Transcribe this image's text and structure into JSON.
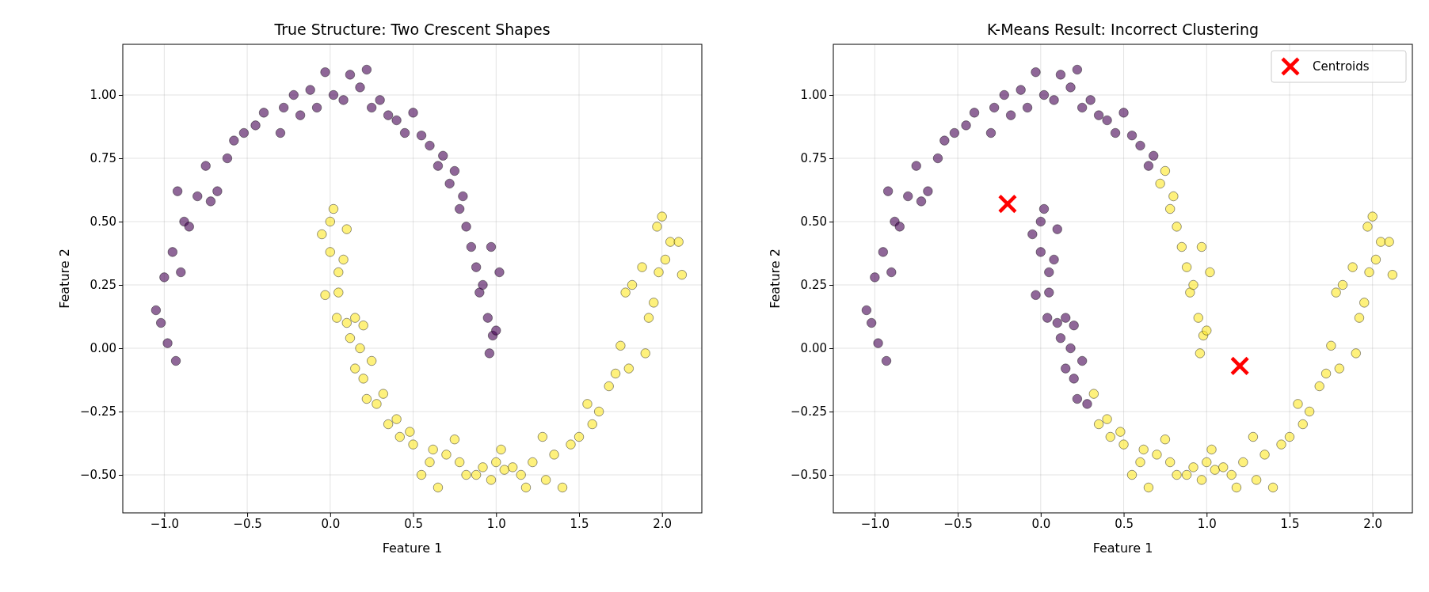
{
  "chart_data": [
    {
      "type": "scatter",
      "title": "True Structure: Two Crescent Shapes",
      "xlabel": "Feature 1",
      "ylabel": "Feature 2",
      "xlim": [
        -1.25,
        2.24
      ],
      "ylim": [
        -0.65,
        1.2
      ],
      "xticks": [
        {
          "value": -1,
          "label": "−1.0"
        },
        {
          "value": -0.5,
          "label": "−0.5"
        },
        {
          "value": 0,
          "label": "0.0"
        },
        {
          "value": 0.5,
          "label": "0.5"
        },
        {
          "value": 1,
          "label": "1.0"
        },
        {
          "value": 1.5,
          "label": "1.5"
        },
        {
          "value": 2,
          "label": "2.0"
        }
      ],
      "yticks": [
        {
          "value": -0.5,
          "label": "−0.50"
        },
        {
          "value": -0.25,
          "label": "−0.25"
        },
        {
          "value": 0,
          "label": "0.00"
        },
        {
          "value": 0.25,
          "label": "0.25"
        },
        {
          "value": 0.5,
          "label": "0.50"
        },
        {
          "value": 0.75,
          "label": "0.75"
        },
        {
          "value": 1,
          "label": "1.00"
        }
      ],
      "grid": true,
      "legend": false,
      "marker": "circle",
      "series": [
        {
          "color": "#440154",
          "x": [
            -1.05,
            -1.02,
            -0.98,
            -0.93,
            -1.0,
            -0.95,
            -0.92,
            -0.88,
            -0.9,
            -0.85,
            -0.8,
            -0.75,
            -0.72,
            -0.68,
            -0.62,
            -0.58,
            -0.52,
            -0.45,
            -0.4,
            -0.3,
            -0.28,
            -0.22,
            -0.18,
            -0.12,
            -0.08,
            -0.03,
            0.02,
            0.08,
            0.12,
            0.18,
            0.22,
            0.25,
            0.3,
            0.35,
            0.4,
            0.45,
            0.5,
            0.55,
            0.6,
            0.65,
            0.68,
            0.72,
            0.75,
            0.78,
            0.8,
            0.82,
            0.85,
            0.88,
            0.9,
            0.92,
            0.95,
            0.97,
            0.98,
            1.0,
            1.02,
            0.96
          ],
          "values": [
            0.15,
            0.1,
            0.02,
            -0.05,
            0.28,
            0.38,
            0.62,
            0.5,
            0.3,
            0.48,
            0.6,
            0.72,
            0.58,
            0.62,
            0.75,
            0.82,
            0.85,
            0.88,
            0.93,
            0.85,
            0.95,
            1.0,
            0.92,
            1.02,
            0.95,
            1.09,
            1.0,
            0.98,
            1.08,
            1.03,
            1.1,
            0.95,
            0.98,
            0.92,
            0.9,
            0.85,
            0.93,
            0.84,
            0.8,
            0.72,
            0.76,
            0.65,
            0.7,
            0.55,
            0.6,
            0.48,
            0.4,
            0.32,
            0.22,
            0.25,
            0.12,
            0.4,
            0.05,
            0.07,
            0.3,
            -0.02
          ]
        },
        {
          "color": "#fde725",
          "x": [
            0.0,
            0.02,
            -0.05,
            0.0,
            0.05,
            -0.03,
            0.05,
            0.1,
            0.08,
            0.04,
            0.1,
            0.15,
            0.12,
            0.18,
            0.2,
            0.15,
            0.2,
            0.25,
            0.22,
            0.28,
            0.32,
            0.35,
            0.4,
            0.42,
            0.48,
            0.5,
            0.55,
            0.6,
            0.62,
            0.65,
            0.7,
            0.75,
            0.78,
            0.82,
            0.88,
            0.92,
            0.97,
            1.0,
            1.03,
            1.05,
            1.1,
            1.15,
            1.18,
            1.22,
            1.28,
            1.3,
            1.35,
            1.4,
            1.45,
            1.5,
            1.55,
            1.58,
            1.62,
            1.68,
            1.72,
            1.75,
            1.8,
            1.78,
            1.82,
            1.88,
            1.92,
            1.95,
            1.97,
            2.0,
            2.02,
            2.05,
            2.1,
            2.12,
            1.98,
            1.9
          ],
          "values": [
            0.5,
            0.55,
            0.45,
            0.38,
            0.3,
            0.21,
            0.22,
            0.47,
            0.35,
            0.12,
            0.1,
            0.12,
            0.04,
            0.0,
            0.09,
            -0.08,
            -0.12,
            -0.05,
            -0.2,
            -0.22,
            -0.18,
            -0.3,
            -0.28,
            -0.35,
            -0.33,
            -0.38,
            -0.5,
            -0.45,
            -0.4,
            -0.55,
            -0.42,
            -0.36,
            -0.45,
            -0.5,
            -0.5,
            -0.47,
            -0.52,
            -0.45,
            -0.4,
            -0.48,
            -0.47,
            -0.5,
            -0.55,
            -0.45,
            -0.35,
            -0.52,
            -0.42,
            -0.55,
            -0.38,
            -0.35,
            -0.22,
            -0.3,
            -0.25,
            -0.15,
            -0.1,
            0.01,
            -0.08,
            0.22,
            0.25,
            0.32,
            0.12,
            0.18,
            0.48,
            0.52,
            0.35,
            0.42,
            0.42,
            0.29,
            0.3,
            -0.02
          ]
        }
      ]
    },
    {
      "type": "scatter",
      "title": "K-Means Result: Incorrect Clustering",
      "xlabel": "Feature 1",
      "ylabel": "Feature 2",
      "xlim": [
        -1.25,
        2.24
      ],
      "ylim": [
        -0.65,
        1.2
      ],
      "xticks": [
        {
          "value": -1,
          "label": "−1.0"
        },
        {
          "value": -0.5,
          "label": "−0.5"
        },
        {
          "value": 0,
          "label": "0.0"
        },
        {
          "value": 0.5,
          "label": "0.5"
        },
        {
          "value": 1,
          "label": "1.0"
        },
        {
          "value": 1.5,
          "label": "1.5"
        },
        {
          "value": 2,
          "label": "2.0"
        }
      ],
      "yticks": [
        {
          "value": -0.5,
          "label": "−0.50"
        },
        {
          "value": -0.25,
          "label": "−0.25"
        },
        {
          "value": 0,
          "label": "0.00"
        },
        {
          "value": 0.25,
          "label": "0.25"
        },
        {
          "value": 0.5,
          "label": "0.50"
        },
        {
          "value": 0.75,
          "label": "0.75"
        },
        {
          "value": 1,
          "label": "1.00"
        }
      ],
      "grid": true,
      "legend": "top right",
      "marker": "circle",
      "series": [
        {
          "color": "#440154",
          "x": [
            -1.05,
            -1.02,
            -0.98,
            -0.93,
            -1.0,
            -0.95,
            -0.92,
            -0.88,
            -0.9,
            -0.85,
            -0.8,
            -0.75,
            -0.72,
            -0.68,
            -0.62,
            -0.58,
            -0.52,
            -0.45,
            -0.4,
            -0.3,
            -0.28,
            -0.22,
            -0.18,
            -0.12,
            -0.08,
            -0.03,
            0.02,
            0.08,
            0.12,
            0.18,
            0.22,
            0.25,
            0.3,
            0.35,
            0.4,
            0.45,
            0.5,
            0.55,
            0.6,
            0.65,
            0.68,
            0.0,
            0.02,
            -0.05,
            0.0,
            0.05,
            -0.03,
            0.05,
            0.1,
            0.08,
            0.04,
            0.1,
            0.15,
            0.12,
            0.18,
            0.2,
            0.15,
            0.2,
            0.25,
            0.22,
            0.28
          ],
          "values": [
            0.15,
            0.1,
            0.02,
            -0.05,
            0.28,
            0.38,
            0.62,
            0.5,
            0.3,
            0.48,
            0.6,
            0.72,
            0.58,
            0.62,
            0.75,
            0.82,
            0.85,
            0.88,
            0.93,
            0.85,
            0.95,
            1.0,
            0.92,
            1.02,
            0.95,
            1.09,
            1.0,
            0.98,
            1.08,
            1.03,
            1.1,
            0.95,
            0.98,
            0.92,
            0.9,
            0.85,
            0.93,
            0.84,
            0.8,
            0.72,
            0.76,
            0.5,
            0.55,
            0.45,
            0.38,
            0.3,
            0.21,
            0.22,
            0.47,
            0.35,
            0.12,
            0.1,
            0.12,
            0.04,
            0.0,
            0.09,
            -0.08,
            -0.12,
            -0.05,
            -0.2,
            -0.22
          ]
        },
        {
          "color": "#fde725",
          "x": [
            0.72,
            0.75,
            0.78,
            0.8,
            0.82,
            0.85,
            0.88,
            0.9,
            0.92,
            0.95,
            0.97,
            0.98,
            1.0,
            1.02,
            0.96,
            0.32,
            0.35,
            0.4,
            0.42,
            0.48,
            0.5,
            0.55,
            0.6,
            0.62,
            0.65,
            0.7,
            0.75,
            0.78,
            0.82,
            0.88,
            0.92,
            0.97,
            1.0,
            1.03,
            1.05,
            1.1,
            1.15,
            1.18,
            1.22,
            1.28,
            1.3,
            1.35,
            1.4,
            1.45,
            1.5,
            1.55,
            1.58,
            1.62,
            1.68,
            1.72,
            1.75,
            1.8,
            1.78,
            1.82,
            1.88,
            1.92,
            1.95,
            1.97,
            2.0,
            2.02,
            2.05,
            2.1,
            2.12,
            1.98,
            1.9
          ],
          "values": [
            0.65,
            0.7,
            0.55,
            0.6,
            0.48,
            0.4,
            0.32,
            0.22,
            0.25,
            0.12,
            0.4,
            0.05,
            0.07,
            0.3,
            -0.02,
            -0.18,
            -0.3,
            -0.28,
            -0.35,
            -0.33,
            -0.38,
            -0.5,
            -0.45,
            -0.4,
            -0.55,
            -0.42,
            -0.36,
            -0.45,
            -0.5,
            -0.5,
            -0.47,
            -0.52,
            -0.45,
            -0.4,
            -0.48,
            -0.47,
            -0.5,
            -0.55,
            -0.45,
            -0.35,
            -0.52,
            -0.42,
            -0.55,
            -0.38,
            -0.35,
            -0.22,
            -0.3,
            -0.25,
            -0.15,
            -0.1,
            0.01,
            -0.08,
            0.22,
            0.25,
            0.32,
            0.12,
            0.18,
            0.48,
            0.52,
            0.35,
            0.42,
            0.42,
            0.29,
            0.3,
            -0.02
          ]
        },
        {
          "name": "Centroids",
          "color": "#ff0000",
          "marker": "cross",
          "x": [
            -0.2,
            1.2
          ],
          "values": [
            0.57,
            -0.07
          ]
        }
      ]
    }
  ]
}
